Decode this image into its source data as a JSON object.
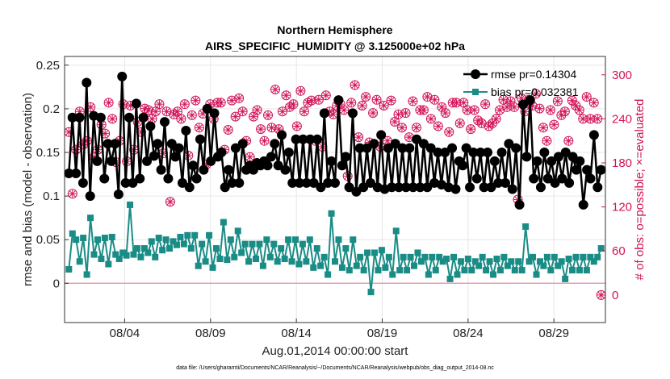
{
  "chart_data": {
    "type": "line",
    "title": "Northern Hemisphere",
    "subtitle": "AIRS_SPECIFIC_HUMIDITY @ 3.125000e+02 hPa",
    "xlabel": "Aug.01,2014 00:00:00 start",
    "ylabel": "rmse and bias (model - observation)",
    "y2label": "# of obs: o=possible; ×=evaluated",
    "footnote": "data file: /Users/gharamti/Documents/NCAR/Reanalysis/~/Documents/NCAR/Reanalysis/webpub/obs_diag_output_2014-08.nc",
    "xlim": [
      0,
      31.5
    ],
    "ylim": [
      -0.045,
      0.26
    ],
    "y2lim": [
      -37.5,
      325
    ],
    "grid": true,
    "legend_position": "top-right",
    "x_ticks": [
      {
        "value": 3.5,
        "label": "08/04"
      },
      {
        "value": 8.5,
        "label": "08/09"
      },
      {
        "value": 13.5,
        "label": "08/14"
      },
      {
        "value": 18.5,
        "label": "08/19"
      },
      {
        "value": 23.5,
        "label": "08/24"
      },
      {
        "value": 28.5,
        "label": "08/29"
      }
    ],
    "y_ticks": [
      {
        "value": 0,
        "label": "0"
      },
      {
        "value": 0.05,
        "label": "0.05"
      },
      {
        "value": 0.1,
        "label": "0.1"
      },
      {
        "value": 0.15,
        "label": "0.15"
      },
      {
        "value": 0.2,
        "label": "0.2"
      },
      {
        "value": 0.25,
        "label": "0.25"
      }
    ],
    "y2_ticks": [
      {
        "value": 0,
        "label": "0"
      },
      {
        "value": 60,
        "label": "60"
      },
      {
        "value": 120,
        "label": "120"
      },
      {
        "value": 180,
        "label": "180"
      },
      {
        "value": 240,
        "label": "240"
      },
      {
        "value": 300,
        "label": "300"
      }
    ],
    "colors": {
      "rmse": "#000000",
      "bias": "#1a8c86",
      "obs": "#d2145a",
      "zero_line": "#e0a0b4"
    },
    "series": [
      {
        "name": "rmse",
        "legend_label": "rmse pr=0.14304",
        "axis": "left",
        "values": [
          0.126,
          0.19,
          0.126,
          0.19,
          0.115,
          0.23,
          0.1,
          0.192,
          0.14,
          0.19,
          0.12,
          0.16,
          0.14,
          0.16,
          0.102,
          0.237,
          0.115,
          0.19,
          0.115,
          0.206,
          0.12,
          0.19,
          0.14,
          0.18,
          0.146,
          0.16,
          0.13,
          0.185,
          0.12,
          0.16,
          0.145,
          0.155,
          0.115,
          0.175,
          0.11,
          0.135,
          0.12,
          0.165,
          0.13,
          0.2,
          0.14,
          0.195,
          0.145,
          0.15,
          0.11,
          0.13,
          0.115,
          0.155,
          0.115,
          0.16,
          0.13,
          0.135,
          0.13,
          0.138,
          0.135,
          0.14,
          0.135,
          0.145,
          0.16,
          0.135,
          0.17,
          0.13,
          0.15,
          0.115,
          0.165,
          0.115,
          0.165,
          0.115,
          0.165,
          0.115,
          0.165,
          0.11,
          0.195,
          0.115,
          0.14,
          0.115,
          0.21,
          0.135,
          0.145,
          0.11,
          0.195,
          0.105,
          0.155,
          0.11,
          0.155,
          0.115,
          0.16,
          0.11,
          0.17,
          0.108,
          0.155,
          0.11,
          0.16,
          0.11,
          0.155,
          0.11,
          0.155,
          0.11,
          0.165,
          0.11,
          0.16,
          0.11,
          0.155,
          0.115,
          0.15,
          0.113,
          0.15,
          0.11,
          0.155,
          0.108,
          0.14,
          0.135,
          0.155,
          0.11,
          0.15,
          0.12,
          0.15,
          0.11,
          0.15,
          0.11,
          0.14,
          0.115,
          0.15,
          0.115,
          0.16,
          0.108,
          0.155,
          0.09,
          0.205,
          0.145,
          0.21,
          0.12,
          0.14,
          0.11,
          0.15,
          0.12,
          0.14,
          0.115,
          0.145,
          0.12,
          0.15,
          0.115,
          0.145,
          0.13,
          0.14,
          0.09,
          0.13,
          0.12,
          0.17,
          0.11,
          0.13
        ],
        "marker": "filled-circle"
      },
      {
        "name": "bias",
        "legend_label": "bias pr=0.032381",
        "axis": "left",
        "values": [
          0.016,
          0.057,
          0.05,
          0.025,
          0.052,
          0.01,
          0.075,
          0.033,
          0.05,
          0.028,
          0.052,
          0.022,
          0.053,
          0.033,
          0.028,
          0.035,
          0.032,
          0.09,
          0.033,
          0.04,
          0.03,
          0.04,
          0.035,
          0.048,
          0.03,
          0.052,
          0.038,
          0.05,
          0.04,
          0.048,
          0.044,
          0.053,
          0.045,
          0.055,
          0.04,
          0.055,
          0.02,
          0.045,
          0.025,
          0.055,
          0.018,
          0.04,
          0.028,
          0.07,
          0.027,
          0.05,
          0.03,
          0.06,
          0.035,
          0.045,
          0.025,
          0.045,
          0.028,
          0.045,
          0.02,
          0.05,
          0.03,
          0.045,
          0.025,
          0.04,
          0.028,
          0.05,
          0.025,
          0.05,
          0.022,
          0.045,
          0.025,
          0.05,
          0.018,
          0.04,
          0.02,
          0.03,
          0.01,
          0.08,
          0.025,
          0.05,
          0.018,
          0.04,
          0.015,
          0.05,
          0.02,
          0.03,
          0.015,
          0.035,
          -0.01,
          0.035,
          0.015,
          0.038,
          0.018,
          0.03,
          0.01,
          0.06,
          0.015,
          0.03,
          0.015,
          0.03,
          0.02,
          0.035,
          0.025,
          0.03,
          0.01,
          0.03,
          0.015,
          0.03,
          0.025,
          0.028,
          0.005,
          0.03,
          0.01,
          0.025,
          0.015,
          0.028,
          0.015,
          0.025,
          0.02,
          0.03,
          0.015,
          0.025,
          0.01,
          0.028,
          0.015,
          0.03,
          0.02,
          0.025,
          0.015,
          0.025,
          0.015,
          0.065,
          0.025,
          0.03,
          0.01,
          0.025,
          0.02,
          0.03,
          0.015,
          0.03,
          0.02,
          0.025,
          0.005,
          0.028,
          0.015,
          0.03,
          0.015,
          0.03,
          0.015,
          0.03,
          0.025,
          0.03,
          0.04
        ],
        "marker": "filled-square"
      },
      {
        "name": "obs_possible",
        "axis": "right",
        "values": [
          222,
          138,
          198,
          250,
          205,
          210,
          256,
          188,
          198,
          232,
          220,
          262,
          240,
          181,
          210,
          260,
          182,
          258,
          198,
          236,
          222,
          254,
          252,
          240,
          250,
          260,
          193,
          250,
          127,
          246,
          250,
          240,
          260,
          190,
          245,
          265,
          228,
          247,
          178,
          260,
          240,
          262,
          262,
          198,
          225,
          265,
          243,
          268,
          250,
          210,
          188,
          243,
          252,
          226,
          210,
          245,
          228,
          280,
          226,
          250,
          272,
          256,
          260,
          230,
          278,
          250,
          262,
          265,
          210,
          266,
          202,
          272,
          250,
          246,
          258,
          260,
          252,
          162,
          262,
          286,
          215,
          258,
          270,
          208,
          248,
          266,
          202,
          258,
          210,
          265,
          236,
          246,
          228,
          248,
          215,
          264,
          228,
          252,
          252,
          270,
          240,
          266,
          230,
          256,
          248,
          222,
          262,
          262,
          234,
          262,
          252,
          226,
          252,
          238,
          234,
          260,
          230,
          234,
          240,
          252,
          266,
          256,
          264,
          256,
          130,
          268,
          250,
          266,
          258,
          274,
          254,
          228,
          210,
          252,
          232,
          264,
          245,
          250,
          210,
          265,
          258,
          252,
          240,
          270,
          240,
          262,
          240,
          0
        ],
        "marker": "open-circle"
      },
      {
        "name": "obs_evaluated",
        "axis": "right",
        "values": [
          222,
          138,
          198,
          250,
          205,
          210,
          256,
          188,
          198,
          232,
          220,
          262,
          240,
          181,
          210,
          260,
          182,
          258,
          198,
          236,
          222,
          254,
          252,
          240,
          250,
          260,
          193,
          250,
          127,
          246,
          250,
          240,
          260,
          190,
          245,
          265,
          228,
          247,
          178,
          260,
          240,
          262,
          262,
          198,
          225,
          265,
          243,
          268,
          250,
          210,
          188,
          243,
          252,
          226,
          210,
          245,
          228,
          280,
          226,
          250,
          272,
          256,
          260,
          230,
          278,
          250,
          262,
          265,
          210,
          266,
          202,
          272,
          250,
          246,
          258,
          260,
          252,
          162,
          262,
          286,
          215,
          258,
          270,
          208,
          248,
          266,
          202,
          258,
          210,
          265,
          236,
          246,
          228,
          248,
          215,
          264,
          228,
          252,
          252,
          270,
          240,
          266,
          230,
          256,
          248,
          222,
          262,
          262,
          234,
          262,
          252,
          226,
          252,
          238,
          234,
          260,
          230,
          234,
          240,
          252,
          266,
          256,
          264,
          256,
          130,
          268,
          250,
          266,
          258,
          274,
          254,
          228,
          210,
          252,
          232,
          264,
          245,
          250,
          210,
          265,
          258,
          252,
          240,
          270,
          240,
          262,
          240,
          0
        ],
        "marker": "asterisk"
      }
    ]
  }
}
